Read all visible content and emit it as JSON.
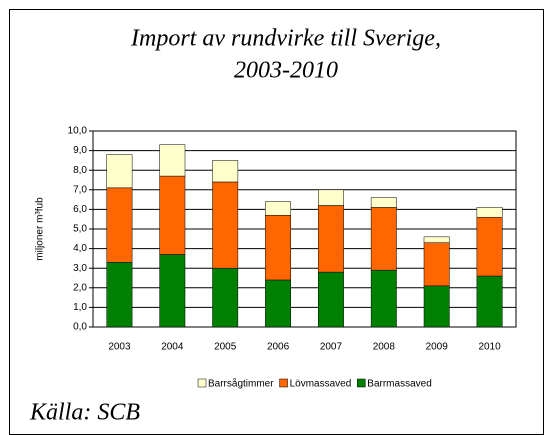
{
  "chart_data": {
    "type": "stacked_bar",
    "title": [
      "Import av rundvirke till Sverige,",
      "2003-2010"
    ],
    "y_label": "miljoner m³fub",
    "source": "Källa: SCB",
    "categories": [
      "2003",
      "2004",
      "2005",
      "2006",
      "2007",
      "2008",
      "2009",
      "2010"
    ],
    "series": [
      {
        "name": "Barrsågtimmer",
        "color": "#ffffcc",
        "values": [
          1.7,
          1.6,
          1.1,
          0.7,
          0.8,
          0.5,
          0.3,
          0.5
        ]
      },
      {
        "name": "Lövmassaved",
        "color": "#ff6600",
        "values": [
          3.8,
          4.0,
          4.4,
          3.3,
          3.4,
          3.2,
          2.2,
          3.0
        ]
      },
      {
        "name": "Barrmassaved",
        "color": "#008000",
        "values": [
          3.3,
          3.7,
          3.0,
          2.4,
          2.8,
          2.9,
          2.1,
          2.6
        ]
      }
    ],
    "stack_order": "last-series-bottom",
    "ylim": [
      0,
      10
    ],
    "yticks": [
      {
        "value": 0,
        "label": "0,0"
      },
      {
        "value": 1,
        "label": "1,0"
      },
      {
        "value": 2,
        "label": "2,0"
      },
      {
        "value": 3,
        "label": "3,0"
      },
      {
        "value": 4,
        "label": "4,0"
      },
      {
        "value": 5,
        "label": "5,0"
      },
      {
        "value": 6,
        "label": "6,0"
      },
      {
        "value": 7,
        "label": "7,0"
      },
      {
        "value": 8,
        "label": "8,0"
      },
      {
        "value": 9,
        "label": "9,0"
      },
      {
        "value": 10,
        "label": "10,0"
      }
    ],
    "grid": true,
    "legend": "bottom"
  }
}
